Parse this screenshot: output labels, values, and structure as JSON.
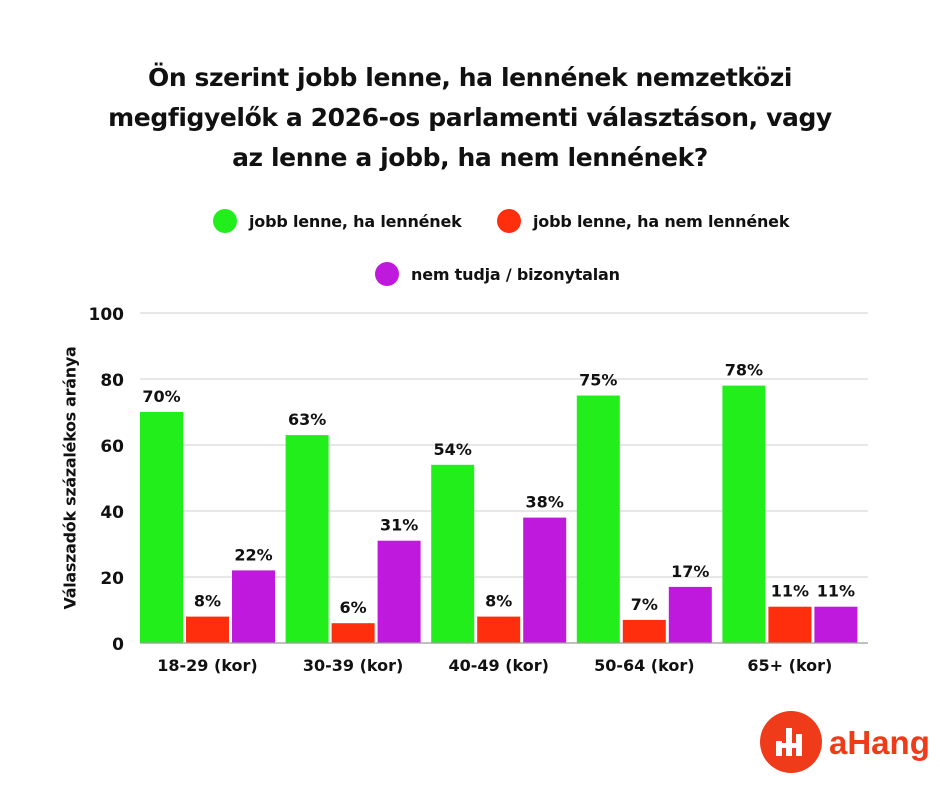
{
  "chart_data": {
    "type": "bar",
    "title": "Ön szerint jobb lenne, ha lennének nemzetközi megfigyelők a 2026-os parlamenti választáson, vagy az lenne a jobb, ha nem lennének?",
    "title_lines": [
      "Ön szerint jobb lenne, ha lennének nemzetközi",
      "megfigyelők a 2026-os parlamenti választáson, vagy",
      "az lenne a jobb, ha nem lennének?"
    ],
    "xlabel": "",
    "ylabel": "Válaszadók százalékos aránya",
    "categories": [
      "18-29 (kor)",
      "30-39 (kor)",
      "40-49 (kor)",
      "50-64 (kor)",
      "65+ (kor)"
    ],
    "series": [
      {
        "name": "jobb lenne, ha lennének",
        "color": "#22ee1c",
        "values": [
          70,
          63,
          54,
          75,
          78
        ]
      },
      {
        "name": "jobb lenne, ha nem lennének",
        "color": "#ff2e0c",
        "values": [
          8,
          6,
          8,
          7,
          11
        ]
      },
      {
        "name": "nem tudja / bizonytalan",
        "color": "#c019de",
        "values": [
          22,
          31,
          38,
          17,
          11
        ]
      }
    ],
    "value_suffix": "%",
    "ylim": [
      0,
      100
    ],
    "yticks": [
      0,
      20,
      40,
      60,
      80,
      100
    ],
    "grid": true,
    "legend_position": "top"
  },
  "logo": {
    "text": "aHang",
    "color": "#ef3b1a"
  }
}
